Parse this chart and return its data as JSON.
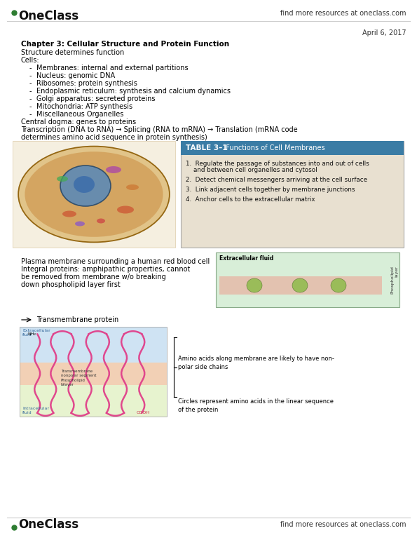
{
  "bg_color": "#ffffff",
  "header_right_text": "find more resources at oneclass.com",
  "footer_right_text": "find more resources at oneclass.com",
  "date_text": "April 6, 2017",
  "chapter_title": "Chapter 3: Cellular Structure and Protein Function",
  "line1": "Structure determines function",
  "line2": "Cells:",
  "bullets": [
    "Membranes: internal and external partitions",
    "Nucleus: genomic DNA",
    "Ribosomes: protein synthesis",
    "Endoplasmic reticulum: synthesis and calcium dynamics",
    "Golgi apparatus: secreted proteins",
    "Mitochondria: ATP synthesis",
    "Miscellaneous Organelles"
  ],
  "central_dogma": "Central dogma: genes to proteins",
  "transcription_line1": "Transcription (DNA to RNA) → Splicing (RNA to mRNA) → Translation (mRNA code",
  "transcription_line2": "determines amino acid sequence in protein synthesis)",
  "table_title": "TABLE 3–1",
  "table_subtitle": "  Functions of Cell Membranes",
  "table_items": [
    [
      "1.  Regulate the passage of substances into and out of cells",
      "    and between cell organelles and cytosol"
    ],
    [
      "2.  Detect chemical messengers arriving at the cell surface"
    ],
    [
      "3.  Link adjacent cells together by membrane junctions"
    ],
    [
      "4.  Anchor cells to the extracellular matrix"
    ]
  ],
  "table_header_color": "#3a7ca5",
  "table_bg_color": "#e8e0d0",
  "plasma_line1": "Plasma membrane surrounding a human red blood cell",
  "plasma_line2": "Integral proteins: amphipathic properties, cannot",
  "plasma_line3": "be removed from membrane w/o breaking",
  "plasma_line4": "down phospholipid layer first",
  "amino_acids_text": "Amino acids along membrane are likely to have non-\npolar side chains",
  "circles_text": "Circles represent amino acids in the linear sequence\nof the protein",
  "logo_color": "#2e7d32",
  "logo_font_size": 12,
  "header_font_size": 7,
  "body_font_size": 7,
  "title_font_size": 7.5
}
